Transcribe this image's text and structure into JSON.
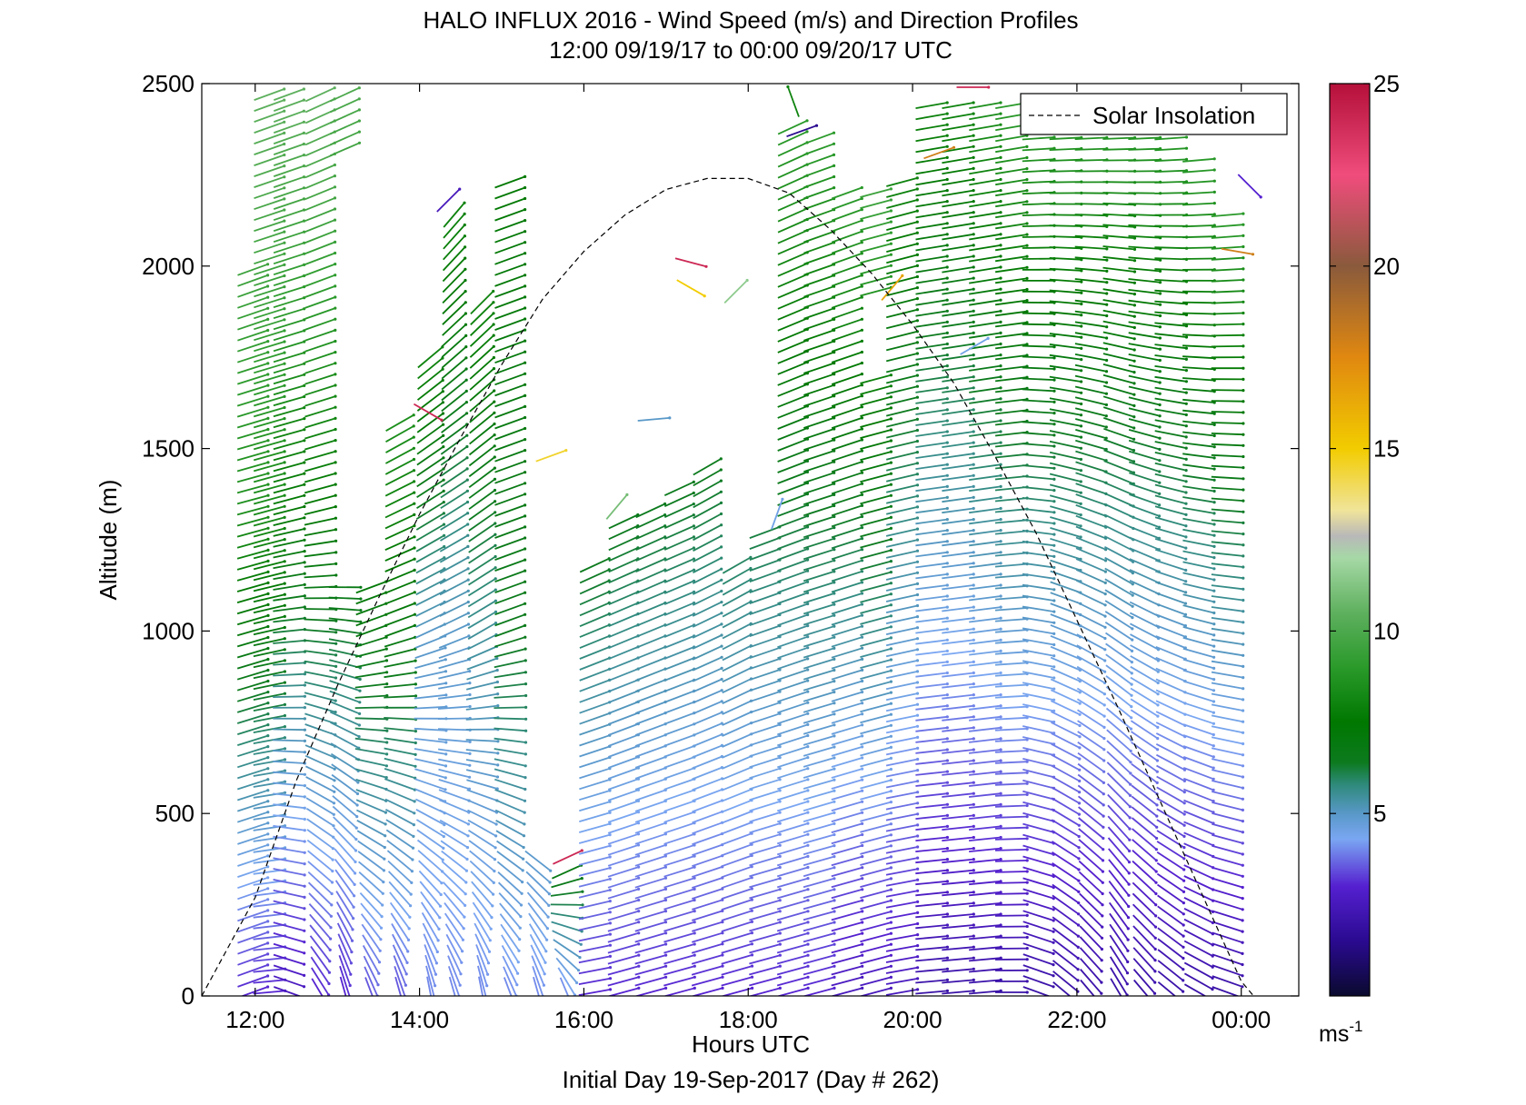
{
  "chart_data": {
    "type": "scatter",
    "title": "HALO INFLUX 2016 - Wind Speed (m/s) and Direction Profiles",
    "subtitle": "12:00 09/19/17 to 00:00 09/20/17  UTC",
    "xlabel": "Hours UTC",
    "footer": "Initial Day 19-Sep-2017 (Day # 262)",
    "ylabel": "Altitude (m)",
    "xlim": [
      11.35,
      24.7
    ],
    "ylim": [
      0,
      2500
    ],
    "x_ticks": [
      12,
      14,
      16,
      18,
      20,
      22,
      24
    ],
    "x_tick_labels": [
      "12:00",
      "14:00",
      "16:00",
      "18:00",
      "20:00",
      "22:00",
      "00:00"
    ],
    "y_ticks": [
      0,
      500,
      1000,
      1500,
      2000,
      2500
    ],
    "y_tick_labels": [
      "0",
      "500",
      "1000",
      "1500",
      "2000",
      "2500"
    ],
    "grid": false,
    "legend": {
      "position": "top-right",
      "entries": [
        {
          "label": "Solar Insolation",
          "style": "dashed",
          "color": "#000000"
        }
      ]
    },
    "colorbar": {
      "range": [
        0,
        25
      ],
      "ticks": [
        5,
        10,
        15,
        20,
        25
      ],
      "tick_labels": [
        "5",
        "10",
        "15",
        "20",
        "25"
      ],
      "unit_label": "ms",
      "unit_exponent": "-1",
      "colors": [
        [
          0,
          "#0a0a2e"
        ],
        [
          1.5,
          "#2a0a90"
        ],
        [
          3,
          "#5520d0"
        ],
        [
          4.3,
          "#7aa6f2"
        ],
        [
          5,
          "#5898c8"
        ],
        [
          5.8,
          "#2e8a7a"
        ],
        [
          6.4,
          "#0c7a1e"
        ],
        [
          7.5,
          "#007800"
        ],
        [
          9,
          "#2a9a2a"
        ],
        [
          10.5,
          "#5eb05e"
        ],
        [
          12,
          "#a6d8a6"
        ],
        [
          12.6,
          "#b8b8b8"
        ],
        [
          13.3,
          "#f0e49a"
        ],
        [
          15,
          "#f2cc00"
        ],
        [
          17.5,
          "#e08810"
        ],
        [
          20,
          "#8a5a3c"
        ],
        [
          22.5,
          "#f04c7c"
        ],
        [
          25,
          "#b4103a"
        ]
      ]
    },
    "solar_insolation": {
      "x": [
        11.35,
        12.0,
        12.5,
        13.0,
        13.5,
        14.0,
        14.5,
        15.0,
        15.5,
        16.0,
        16.5,
        17.0,
        17.5,
        18.0,
        18.5,
        19.0,
        19.5,
        20.0,
        20.5,
        21.0,
        21.5,
        22.0,
        22.5,
        23.0,
        23.5,
        24.0,
        24.15
      ],
      "y": [
        0,
        270,
        590,
        850,
        1090,
        1320,
        1530,
        1730,
        1910,
        2040,
        2140,
        2210,
        2240,
        2240,
        2200,
        2100,
        1980,
        1840,
        1680,
        1480,
        1270,
        1030,
        790,
        540,
        290,
        40,
        0
      ]
    },
    "wind_profiles": {
      "columns": [
        {
          "x": 11.97,
          "y": [
            0,
            1350,
            2000
          ],
          "speed": [
            3.0,
            8.5,
            9.5
          ],
          "direction": [
            250,
            255,
            250
          ]
        },
        {
          "x": 12.17,
          "y": [
            0,
            1300,
            2480
          ],
          "speed": [
            3.0,
            8.2,
            10.5
          ],
          "direction": [
            265,
            255,
            250
          ]
        },
        {
          "x": 12.41,
          "y": [
            0,
            1350,
            2480
          ],
          "speed": [
            2.5,
            7.5,
            10.5
          ],
          "direction": [
            290,
            255,
            250
          ]
        },
        {
          "x": 12.79,
          "y": [
            0,
            1350,
            2490
          ],
          "speed": [
            3.0,
            7.5,
            10.5
          ],
          "direction": [
            330,
            255,
            245
          ]
        },
        {
          "x": 13.09,
          "y": [
            0,
            1350,
            2490
          ],
          "speed": [
            3.0,
            7.5,
            10.0
          ],
          "direction": [
            345,
            255,
            245
          ]
        },
        {
          "x": 13.41,
          "y": [
            0,
            1000,
            2260
          ],
          "speed": [
            3.5,
            7.0,
            9.0
          ],
          "direction": [
            340,
            250,
            245
          ]
        },
        {
          "x": 13.76,
          "y": [
            0,
            1000,
            1580
          ],
          "speed": [
            3.5,
            7.0,
            8.5
          ],
          "direction": [
            345,
            250,
            240
          ]
        },
        {
          "x": 14.13,
          "y": [
            0,
            1000,
            1750
          ],
          "speed": [
            4.0,
            5.0,
            8.0
          ],
          "direction": [
            350,
            245,
            230
          ]
        },
        {
          "x": 14.42,
          "y": [
            0,
            1000,
            2160
          ],
          "speed": [
            4.0,
            5.0,
            8.0
          ],
          "direction": [
            345,
            245,
            220
          ]
        },
        {
          "x": 14.76,
          "y": [
            0,
            1000,
            1900
          ],
          "speed": [
            4.0,
            5.5,
            8.0
          ],
          "direction": [
            350,
            240,
            225
          ]
        },
        {
          "x": 15.1,
          "y": [
            0,
            1000,
            2250
          ],
          "speed": [
            4.0,
            6.5,
            7.5
          ],
          "direction": [
            340,
            250,
            250
          ]
        },
        {
          "x": 15.44,
          "y": [
            0,
            1000,
            2200
          ],
          "speed": [
            4.0,
            6.5,
            7.0
          ],
          "direction": [
            345,
            245,
            245
          ]
        },
        {
          "x": 15.79,
          "y": [
            0,
            360
          ],
          "speed": [
            4.0,
            7.0
          ],
          "direction": [
            340,
            240
          ]
        },
        {
          "x": 16.13,
          "y": [
            0,
            1200
          ],
          "speed": [
            3.0,
            6.5
          ],
          "direction": [
            260,
            245
          ]
        },
        {
          "x": 16.48,
          "y": [
            0,
            1300
          ],
          "speed": [
            3.0,
            6.5
          ],
          "direction": [
            255,
            245
          ]
        },
        {
          "x": 16.81,
          "y": [
            0,
            1350
          ],
          "speed": [
            3.0,
            6.5
          ],
          "direction": [
            255,
            245
          ]
        },
        {
          "x": 17.16,
          "y": [
            0,
            1400
          ],
          "speed": [
            3.0,
            6.5
          ],
          "direction": [
            255,
            245
          ]
        },
        {
          "x": 17.5,
          "y": [
            0,
            1450
          ],
          "speed": [
            3.0,
            6.5
          ],
          "direction": [
            255,
            240
          ]
        },
        {
          "x": 17.86,
          "y": [
            0,
            1200
          ],
          "speed": [
            3.0,
            6.0
          ],
          "direction": [
            255,
            240
          ]
        },
        {
          "x": 18.2,
          "y": [
            0,
            2400
          ],
          "speed": [
            3.0,
            9.0
          ],
          "direction": [
            255,
            245
          ]
        },
        {
          "x": 18.54,
          "y": [
            0,
            2400
          ],
          "speed": [
            3.0,
            9.0
          ],
          "direction": [
            255,
            245
          ]
        },
        {
          "x": 18.86,
          "y": [
            0,
            2350
          ],
          "speed": [
            3.0,
            9.0
          ],
          "direction": [
            255,
            250
          ]
        },
        {
          "x": 19.2,
          "y": [
            0,
            2200
          ],
          "speed": [
            2.5,
            9.0
          ],
          "direction": [
            255,
            250
          ]
        },
        {
          "x": 19.55,
          "y": [
            0,
            2200
          ],
          "speed": [
            2.5,
            9.5
          ],
          "direction": [
            255,
            255
          ]
        },
        {
          "x": 19.87,
          "y": [
            0,
            2250
          ],
          "speed": [
            2.5,
            8.0
          ],
          "direction": [
            260,
            255
          ]
        },
        {
          "x": 20.23,
          "y": [
            0,
            2450
          ],
          "speed": [
            2.0,
            8.0
          ],
          "direction": [
            265,
            260
          ]
        },
        {
          "x": 20.55,
          "y": [
            0,
            2450
          ],
          "speed": [
            2.0,
            8.0
          ],
          "direction": [
            265,
            260
          ]
        },
        {
          "x": 20.88,
          "y": [
            0,
            2450
          ],
          "speed": [
            2.0,
            8.5
          ],
          "direction": [
            265,
            260
          ]
        },
        {
          "x": 21.2,
          "y": [
            0,
            2450
          ],
          "speed": [
            2.0,
            9.0
          ],
          "direction": [
            270,
            260
          ]
        },
        {
          "x": 21.53,
          "y": [
            0,
            2450
          ],
          "speed": [
            2.0,
            9.0
          ],
          "direction": [
            290,
            265
          ]
        },
        {
          "x": 21.86,
          "y": [
            0,
            2450
          ],
          "speed": [
            2.0,
            9.0
          ],
          "direction": [
            310,
            265
          ]
        },
        {
          "x": 22.17,
          "y": [
            0,
            2450
          ],
          "speed": [
            2.0,
            9.0
          ],
          "direction": [
            320,
            265
          ]
        },
        {
          "x": 22.51,
          "y": [
            0,
            2450
          ],
          "speed": [
            2.0,
            9.0
          ],
          "direction": [
            330,
            265
          ]
        },
        {
          "x": 22.82,
          "y": [
            0,
            2450
          ],
          "speed": [
            2.0,
            9.0
          ],
          "direction": [
            320,
            265
          ]
        },
        {
          "x": 23.14,
          "y": [
            0,
            2400
          ],
          "speed": [
            2.0,
            9.0
          ],
          "direction": [
            310,
            265
          ]
        },
        {
          "x": 23.48,
          "y": [
            0,
            2300
          ],
          "speed": [
            2.0,
            9.0
          ],
          "direction": [
            300,
            265
          ]
        },
        {
          "x": 23.83,
          "y": [
            0,
            2150
          ],
          "speed": [
            2.0,
            9.0
          ],
          "direction": [
            290,
            265
          ]
        }
      ],
      "gaps": [
        [
          12.6,
          2120,
          2420
        ],
        [
          13.25,
          1150,
          2300
        ],
        [
          13.6,
          1600,
          2450
        ],
        [
          15.6,
          400,
          2500
        ],
        [
          15.95,
          1250,
          2500
        ],
        [
          16.25,
          1300,
          2500
        ],
        [
          16.65,
          1400,
          2500
        ],
        [
          17.0,
          1450,
          2500
        ],
        [
          17.35,
          1500,
          2500
        ],
        [
          17.7,
          1250,
          2500
        ],
        [
          18.05,
          1300,
          2500
        ],
        [
          19.05,
          2250,
          2500
        ],
        [
          19.4,
          1700,
          1900
        ]
      ],
      "outliers": [
        {
          "x": 14.35,
          "y": 2180,
          "speed": 2.5,
          "direction": 225
        },
        {
          "x": 14.1,
          "y": 1600,
          "speed": 24.0,
          "direction": 300
        },
        {
          "x": 15.8,
          "y": 380,
          "speed": 24.0,
          "direction": 245
        },
        {
          "x": 15.6,
          "y": 1480,
          "speed": 14.5,
          "direction": 250
        },
        {
          "x": 16.4,
          "y": 1340,
          "speed": 11.0,
          "direction": 220
        },
        {
          "x": 16.85,
          "y": 1580,
          "speed": 5.0,
          "direction": 265
        },
        {
          "x": 17.3,
          "y": 2010,
          "speed": 24.0,
          "direction": 285
        },
        {
          "x": 17.3,
          "y": 1940,
          "speed": 15.0,
          "direction": 300
        },
        {
          "x": 17.85,
          "y": 1930,
          "speed": 11.5,
          "direction": 225
        },
        {
          "x": 18.35,
          "y": 1320,
          "speed": 4.5,
          "direction": 200
        },
        {
          "x": 18.65,
          "y": 2370,
          "speed": 1.5,
          "direction": 250
        },
        {
          "x": 18.55,
          "y": 2450,
          "speed": 8.0,
          "direction": 160
        },
        {
          "x": 19.75,
          "y": 1940,
          "speed": 16.5,
          "direction": 220
        },
        {
          "x": 20.32,
          "y": 2310,
          "speed": 18.0,
          "direction": 250
        },
        {
          "x": 20.73,
          "y": 2490,
          "speed": 24.0,
          "direction": 270
        },
        {
          "x": 20.75,
          "y": 1780,
          "speed": 4.5,
          "direction": 240
        },
        {
          "x": 23.95,
          "y": 2040,
          "speed": 18.0,
          "direction": 280
        },
        {
          "x": 24.1,
          "y": 2220,
          "speed": 3.0,
          "direction": 315
        }
      ]
    }
  }
}
